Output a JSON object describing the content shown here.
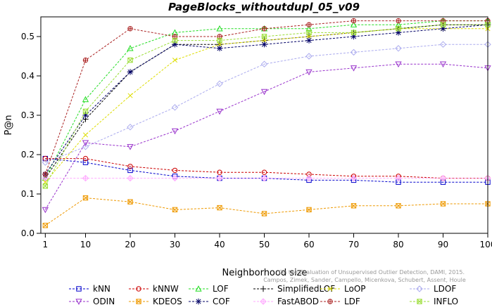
{
  "chart_data": {
    "type": "line",
    "title": "PageBlocks_withoutdupl_05_v09",
    "xlabel": "Neighborhood size",
    "ylabel": "P@n",
    "xlim": [
      0,
      100
    ],
    "ylim": [
      0.0,
      0.55
    ],
    "x_ticks": [
      1,
      10,
      20,
      30,
      40,
      50,
      60,
      70,
      80,
      90,
      100
    ],
    "y_ticks": [
      0.0,
      0.1,
      0.2,
      0.3,
      0.4,
      0.5
    ],
    "watermark": [
      "Campos, Zimek, Sander, Campello, Micenkova, Schubert, Assent, Houle",
      "On the Evaluation of Unsupervised Outlier Detection, DAMI, 2015."
    ],
    "legend_position": "bottom",
    "x": [
      1,
      10,
      20,
      30,
      40,
      50,
      60,
      70,
      80,
      90,
      100
    ],
    "series": [
      {
        "name": "kNN",
        "color": "#0000cc",
        "marker": "square",
        "values": [
          0.19,
          0.18,
          0.16,
          0.145,
          0.14,
          0.14,
          0.135,
          0.135,
          0.13,
          0.13,
          0.13
        ]
      },
      {
        "name": "kNNW",
        "color": "#cc0000",
        "marker": "circle",
        "values": [
          0.19,
          0.19,
          0.17,
          0.16,
          0.155,
          0.155,
          0.15,
          0.145,
          0.145,
          0.14,
          0.14
        ]
      },
      {
        "name": "LOF",
        "color": "#22dd22",
        "marker": "triangle",
        "values": [
          0.14,
          0.34,
          0.47,
          0.51,
          0.52,
          0.52,
          0.52,
          0.53,
          0.53,
          0.54,
          0.54
        ]
      },
      {
        "name": "SimplifiedLOF",
        "color": "#000000",
        "marker": "plus",
        "values": [
          0.14,
          0.29,
          0.41,
          0.48,
          0.48,
          0.49,
          0.5,
          0.51,
          0.52,
          0.53,
          0.53
        ]
      },
      {
        "name": "LoOP",
        "color": "#dddd00",
        "marker": "x",
        "values": [
          0.13,
          0.25,
          0.35,
          0.44,
          0.48,
          0.49,
          0.5,
          0.51,
          0.52,
          0.52,
          0.52
        ]
      },
      {
        "name": "LDOF",
        "color": "#aaaaee",
        "marker": "diamond",
        "values": [
          0.18,
          0.22,
          0.27,
          0.32,
          0.38,
          0.43,
          0.45,
          0.46,
          0.47,
          0.48,
          0.48
        ]
      },
      {
        "name": "ODIN",
        "color": "#9933cc",
        "marker": "triangle-down",
        "values": [
          0.06,
          0.23,
          0.22,
          0.26,
          0.31,
          0.36,
          0.41,
          0.42,
          0.43,
          0.43,
          0.42
        ]
      },
      {
        "name": "KDEOS",
        "color": "#ee9900",
        "marker": "square-x",
        "values": [
          0.02,
          0.09,
          0.08,
          0.06,
          0.065,
          0.05,
          0.06,
          0.07,
          0.07,
          0.075,
          0.075
        ]
      },
      {
        "name": "COF",
        "color": "#000066",
        "marker": "star",
        "values": [
          0.15,
          0.3,
          0.41,
          0.48,
          0.47,
          0.48,
          0.49,
          0.5,
          0.51,
          0.52,
          0.53
        ]
      },
      {
        "name": "FastABOD",
        "color": "#ffaaff",
        "marker": "diamond-plus",
        "values": [
          0.14,
          0.14,
          0.14,
          0.14,
          0.14,
          0.14,
          0.14,
          0.14,
          0.14,
          0.14,
          0.14
        ]
      },
      {
        "name": "LDF",
        "color": "#aa2222",
        "marker": "circle-plus",
        "values": [
          0.15,
          0.44,
          0.52,
          0.5,
          0.5,
          0.52,
          0.53,
          0.54,
          0.54,
          0.54,
          0.54
        ]
      },
      {
        "name": "INFLO",
        "color": "#99dd33",
        "marker": "square-x",
        "values": [
          0.12,
          0.31,
          0.44,
          0.49,
          0.49,
          0.5,
          0.51,
          0.51,
          0.52,
          0.53,
          0.53
        ]
      }
    ]
  }
}
